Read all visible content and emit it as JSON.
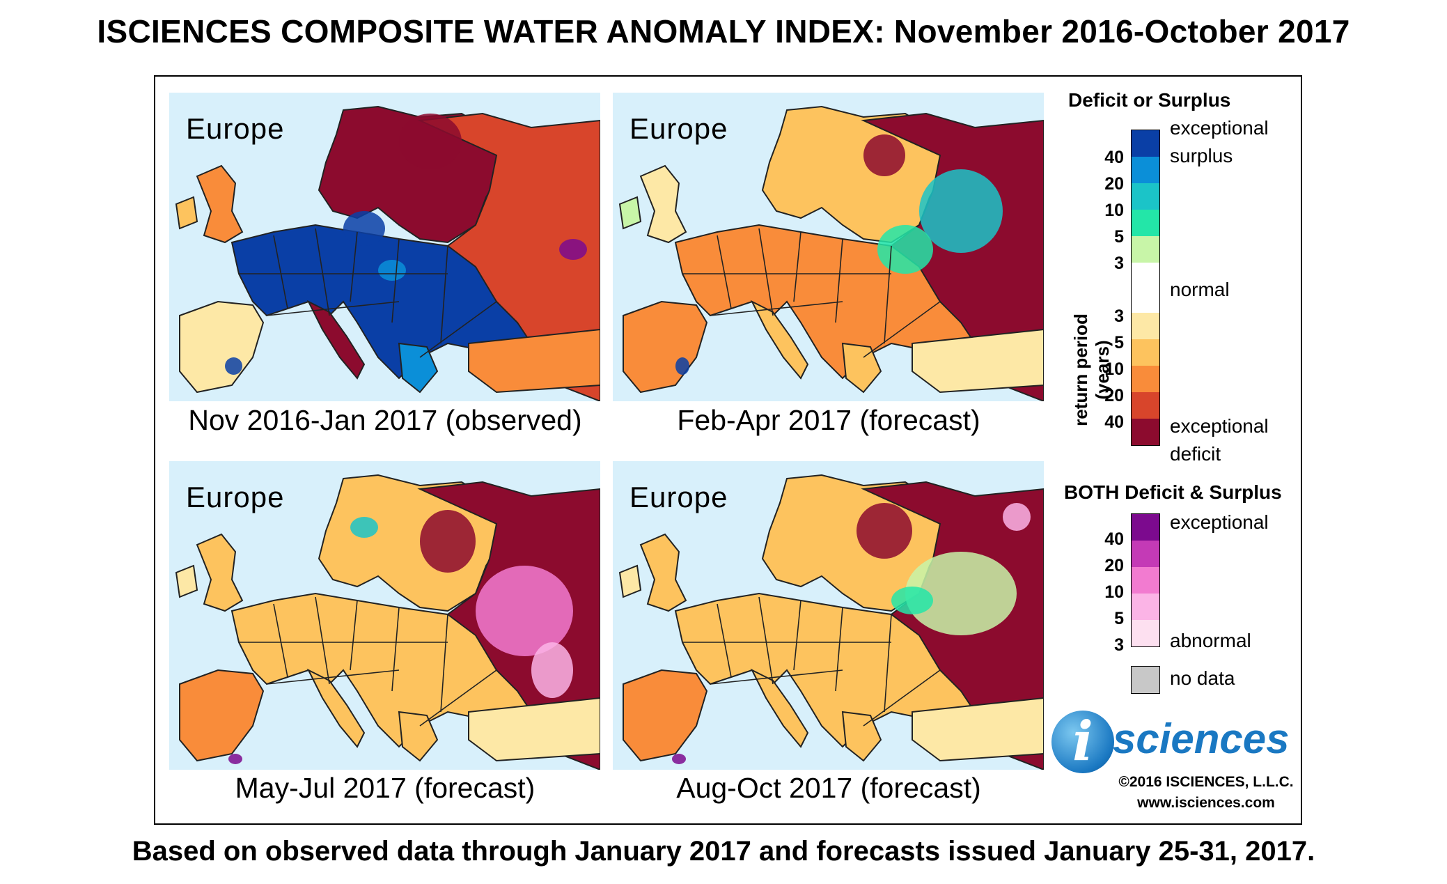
{
  "title": "ISCIENCES COMPOSITE WATER ANOMALY INDEX: November 2016-October 2017",
  "footer": "Based on observed data through January 2017 and forecasts issued January 25-31, 2017.",
  "panels": [
    {
      "region": "Europe",
      "caption": "Nov 2016-Jan 2017 (observed)",
      "scheme": "observed"
    },
    {
      "region": "Europe",
      "caption": "Feb-Apr 2017 (forecast)",
      "scheme": "febapr"
    },
    {
      "region": "Europe",
      "caption": "May-Jul 2017 (forecast)",
      "scheme": "mayjul"
    },
    {
      "region": "Europe",
      "caption": "Aug-Oct 2017 (forecast)",
      "scheme": "augoct"
    }
  ],
  "legend": {
    "deficit_surplus_title": "Deficit or Surplus",
    "axis_label": "return period (years)",
    "surplus_colors": [
      "#0a3fa6",
      "#0b8fd8",
      "#1bc4c8",
      "#23e6a8",
      "#c8f5a8"
    ],
    "normal_color": "#ffffff",
    "deficit_colors": [
      "#fde8a6",
      "#fdc35e",
      "#f98c3a",
      "#d8452b",
      "#8c0b2e"
    ],
    "surplus_ticks": [
      "40",
      "20",
      "10",
      "5",
      "3"
    ],
    "deficit_ticks": [
      "3",
      "5",
      "10",
      "20",
      "40"
    ],
    "exceptional_surplus_1": "exceptional",
    "exceptional_surplus_2": "surplus",
    "normal": "normal",
    "exceptional_deficit_1": "exceptional",
    "exceptional_deficit_2": "deficit",
    "both_title": "BOTH Deficit & Surplus",
    "both_colors": [
      "#7c0a8e",
      "#c43ab6",
      "#f27bd0",
      "#fbb4e6",
      "#fde0f0"
    ],
    "both_ticks": [
      "40",
      "20",
      "10",
      "5",
      "3"
    ],
    "both_exceptional": "exceptional",
    "both_abnormal": "abnormal",
    "no_data_color": "#c8c8c8",
    "no_data": "no data"
  },
  "logo": {
    "letter": "i",
    "text": "sciences"
  },
  "copyright": "©2016 ISCIENCES, L.L.C.",
  "website": "www.isciences.com"
}
